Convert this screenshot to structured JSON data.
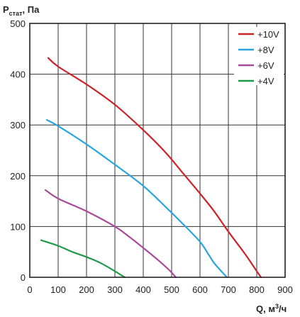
{
  "chart_data": {
    "type": "line",
    "title": "",
    "ylabel_main": "P",
    "ylabel_sub": "стат",
    "ylabel_unit": ", Па",
    "xlabel_main": "Q, м",
    "xlabel_sup": "3",
    "xlabel_unit": "/ч",
    "xlim": [
      0,
      900
    ],
    "ylim": [
      0,
      500
    ],
    "x_ticks": [
      0,
      100,
      200,
      300,
      400,
      500,
      600,
      700,
      800,
      900
    ],
    "y_ticks": [
      0,
      100,
      200,
      300,
      400,
      500
    ],
    "x_tick_labels": [
      "0",
      "100",
      "200",
      "300",
      "400",
      "500",
      "600",
      "700",
      "800",
      "900"
    ],
    "y_tick_labels": [
      "0",
      "100",
      "200",
      "300",
      "400",
      "500"
    ],
    "grid": true,
    "legend_position": "top-right",
    "series": [
      {
        "name": "+10V",
        "color": "#cc2229",
        "points": [
          [
            65,
            432
          ],
          [
            100,
            415
          ],
          [
            200,
            380
          ],
          [
            300,
            340
          ],
          [
            400,
            290
          ],
          [
            480,
            245
          ],
          [
            540,
            205
          ],
          [
            600,
            165
          ],
          [
            650,
            130
          ],
          [
            700,
            90
          ],
          [
            760,
            45
          ],
          [
            800,
            12
          ],
          [
            815,
            0
          ]
        ]
      },
      {
        "name": "+8V",
        "color": "#2aa6de",
        "points": [
          [
            60,
            310
          ],
          [
            100,
            298
          ],
          [
            200,
            262
          ],
          [
            300,
            222
          ],
          [
            400,
            180
          ],
          [
            480,
            138
          ],
          [
            540,
            105
          ],
          [
            600,
            70
          ],
          [
            630,
            45
          ],
          [
            650,
            28
          ],
          [
            675,
            12
          ],
          [
            695,
            0
          ]
        ]
      },
      {
        "name": "+6V",
        "color": "#a84a9b",
        "points": [
          [
            55,
            172
          ],
          [
            100,
            155
          ],
          [
            200,
            130
          ],
          [
            300,
            100
          ],
          [
            350,
            80
          ],
          [
            400,
            58
          ],
          [
            450,
            35
          ],
          [
            490,
            15
          ],
          [
            515,
            0
          ]
        ]
      },
      {
        "name": "+4V",
        "color": "#1f9a4a",
        "points": [
          [
            40,
            73
          ],
          [
            100,
            62
          ],
          [
            150,
            50
          ],
          [
            200,
            40
          ],
          [
            250,
            28
          ],
          [
            300,
            12
          ],
          [
            320,
            5
          ],
          [
            335,
            0
          ]
        ]
      }
    ]
  }
}
